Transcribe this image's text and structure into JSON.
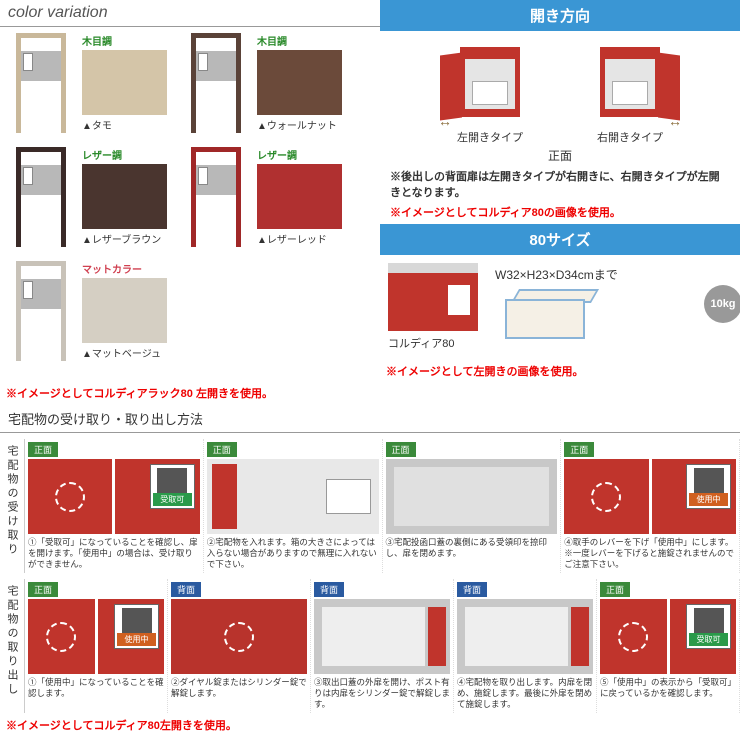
{
  "sections": {
    "colorVariation": "color variation",
    "instructions": "宅配物の受け取り・取り出し方法"
  },
  "banners": {
    "openDirection": {
      "text": "開き方向",
      "bg": "#3a96d4"
    },
    "size": {
      "text": "80サイズ",
      "bg": "#3a96d4"
    }
  },
  "colors": {
    "wood": {
      "label": "木目調",
      "color": "#2a8a2a"
    },
    "leather": {
      "label": "レザー調",
      "color": "#2a8a2a"
    },
    "matte": {
      "label": "マットカラー",
      "color": "#d04050"
    }
  },
  "variants": [
    {
      "group": "wood",
      "frame": "#c9b89a",
      "swatch": "#d4c5a8",
      "name": "▲タモ"
    },
    {
      "group": "wood",
      "frame": "#5a4238",
      "swatch": "#6b4a3a",
      "name": "▲ウォールナット"
    },
    {
      "group": "leather",
      "frame": "#3a2a28",
      "swatch": "#4a352f",
      "name": "▲レザーブラウン"
    },
    {
      "group": "leather",
      "frame": "#a02828",
      "swatch": "#b03030",
      "name": "▲レザーレッド"
    },
    {
      "group": "matte",
      "frame": "#c8c2b8",
      "swatch": "#d5cfc3",
      "name": "▲マットベージュ"
    }
  ],
  "notes": {
    "cvNote": "※イメージとしてコルディアラック80 左開きを使用。",
    "openNote1": "※後出しの背面扉は左開きタイプが右開きに、右開きタイプが左開きとなります。",
    "openNote2": "※イメージとしてコルディア80の画像を使用。",
    "sizeNote": "※イメージとして左開きの画像を使用。",
    "bottomNote": "※イメージとしてコルディア80左開きを使用。"
  },
  "openDirection": {
    "centerLabel": "正面",
    "left": "左開きタイプ",
    "right": "右開きタイプ"
  },
  "size": {
    "dims": "W32×H23×D34cmまで",
    "weight": "10kg",
    "product": "コルディア80"
  },
  "tags": {
    "front": "正面",
    "back": "背面"
  },
  "labels": {
    "receive": "宅配物の受け取り",
    "takeout": "宅配物の取り出し"
  },
  "badges": {
    "ok": {
      "text": "受取可",
      "bg": "#2a9a4a"
    },
    "busy": {
      "text": "使用中",
      "bg": "#d06020"
    }
  },
  "receiveSteps": [
    {
      "tag": "front",
      "imgs": [
        "red",
        "zoom-ok"
      ],
      "text": "①「受取可」になっていることを確認し、扉を開けます。「使用中」の場合は、受け取りができません。"
    },
    {
      "tag": "front",
      "imgs": [
        "open-white"
      ],
      "text": "②宅配物を入れます。箱の大きさによっては入らない場合がありますので無理に入れないで下さい。"
    },
    {
      "tag": "front",
      "imgs": [
        "gray-slot"
      ],
      "text": "③宅配投函口蓋の裏側にある受領印を捺印し、扉を閉めます。"
    },
    {
      "tag": "front",
      "imgs": [
        "red",
        "zoom-busy"
      ],
      "text": "④取手のレバーを下げ「使用中」にします。※一度レバーを下げると施錠されませんのでご注意下さい。"
    }
  ],
  "takeoutSteps": [
    {
      "tag": "front",
      "imgs": [
        "red",
        "zoom-busy"
      ],
      "text": "①「使用中」になっていることを確認します。"
    },
    {
      "tag": "back",
      "imgs": [
        "red-back"
      ],
      "text": "②ダイヤル錠またはシリンダー錠で解錠します。"
    },
    {
      "tag": "back",
      "imgs": [
        "gray-open"
      ],
      "text": "③取出口蓋の外扉を開け、ポスト有りは内扉をシリンダー錠で解錠します。"
    },
    {
      "tag": "back",
      "imgs": [
        "gray-open"
      ],
      "text": "④宅配物を取り出します。内扉を閉め、施錠します。最後に外扉を閉めて施錠します。"
    },
    {
      "tag": "front",
      "imgs": [
        "red",
        "zoom-ok"
      ],
      "text": "⑤「使用中」の表示から「受取可」に戻っているかを確認します。"
    }
  ]
}
